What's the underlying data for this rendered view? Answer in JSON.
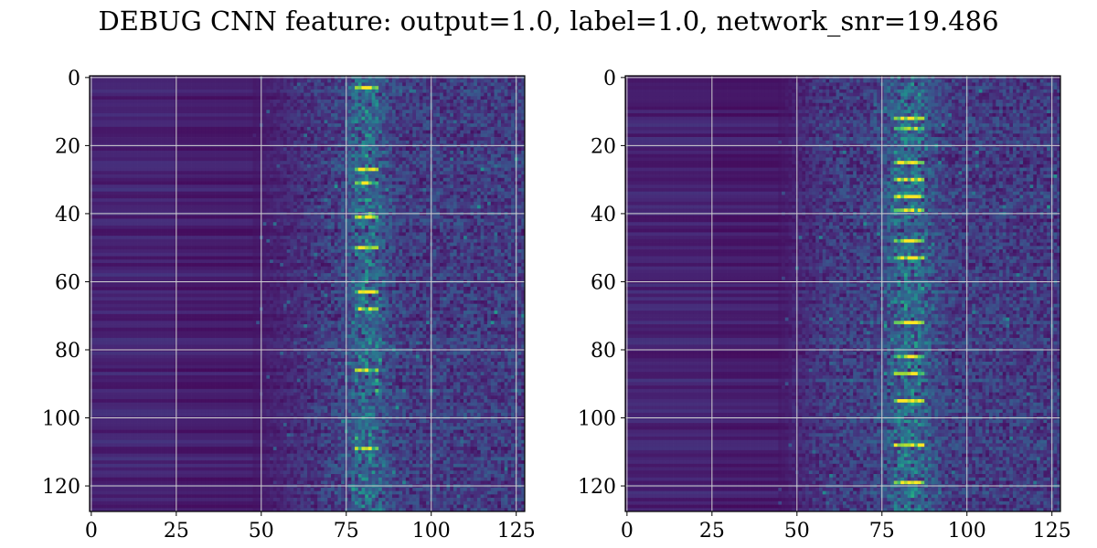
{
  "figure": {
    "title": "DEBUG CNN feature: output=1.0, label=1.0, network_snr=19.486"
  },
  "chart_data": [
    {
      "type": "heatmap",
      "title": "",
      "xlabel": "",
      "ylabel": "",
      "rows": 128,
      "cols": 128,
      "xlim": [
        0,
        127
      ],
      "ylim": [
        127,
        0
      ],
      "grid": true,
      "colormap": "viridis",
      "x_ticks": [
        0,
        25,
        50,
        75,
        100,
        125
      ],
      "y_ticks": [
        0,
        20,
        40,
        60,
        80,
        100,
        120
      ],
      "description_of_intensity": {
        "background_cols": [
          0,
          48
        ],
        "hotspot_col_center": 81,
        "hotspot_col_spread": 4,
        "noise_band_start_col": 60,
        "peak_rows": [
          3,
          27,
          31,
          41,
          50,
          63,
          68,
          86,
          109
        ]
      }
    },
    {
      "type": "heatmap",
      "title": "",
      "xlabel": "",
      "ylabel": "",
      "rows": 128,
      "cols": 128,
      "xlim": [
        0,
        127
      ],
      "ylim": [
        127,
        0
      ],
      "grid": true,
      "colormap": "viridis",
      "x_ticks": [
        0,
        25,
        50,
        75,
        100,
        125
      ],
      "y_ticks": [
        0,
        20,
        40,
        60,
        80,
        100,
        120
      ],
      "description_of_intensity": {
        "background_cols": [
          0,
          45
        ],
        "hotspot_col_center": 83,
        "hotspot_col_spread": 5,
        "noise_band_start_col": 50,
        "peak_rows": [
          12,
          15,
          25,
          30,
          35,
          39,
          48,
          53,
          72,
          82,
          87,
          95,
          108,
          119
        ]
      }
    }
  ]
}
